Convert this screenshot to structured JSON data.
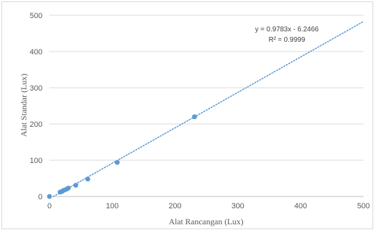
{
  "chart_data": {
    "type": "scatter",
    "title": "",
    "xlabel": "Alat Rancangan (Lux)",
    "ylabel": "Alat  Standar  (Lux)",
    "xlim": [
      0,
      500
    ],
    "ylim": [
      0,
      500
    ],
    "x_ticks": [
      "0",
      "100",
      "200",
      "300",
      "400",
      "500"
    ],
    "y_ticks": [
      "0",
      "100",
      "200",
      "300",
      "400",
      "500"
    ],
    "grid": "horizontal",
    "legend": "none",
    "marker_color": "#5b9bd5",
    "series": [
      {
        "points": [
          {
            "x": 0,
            "y": 0
          },
          {
            "x": 17,
            "y": 12
          },
          {
            "x": 20,
            "y": 14
          },
          {
            "x": 23,
            "y": 17
          },
          {
            "x": 27,
            "y": 20
          },
          {
            "x": 30,
            "y": 23
          },
          {
            "x": 42,
            "y": 31
          },
          {
            "x": 61,
            "y": 48
          },
          {
            "x": 108,
            "y": 94
          },
          {
            "x": 231,
            "y": 220
          }
        ]
      }
    ],
    "trendline": {
      "type": "linear",
      "slope": 0.9783,
      "intercept": -6.2466,
      "x_range": [
        0,
        500
      ],
      "style": "dotted",
      "color": "#5b9bd5",
      "equation": "y = 0.9783x - 6.2466",
      "r_squared": "R² = 0.9999"
    }
  }
}
